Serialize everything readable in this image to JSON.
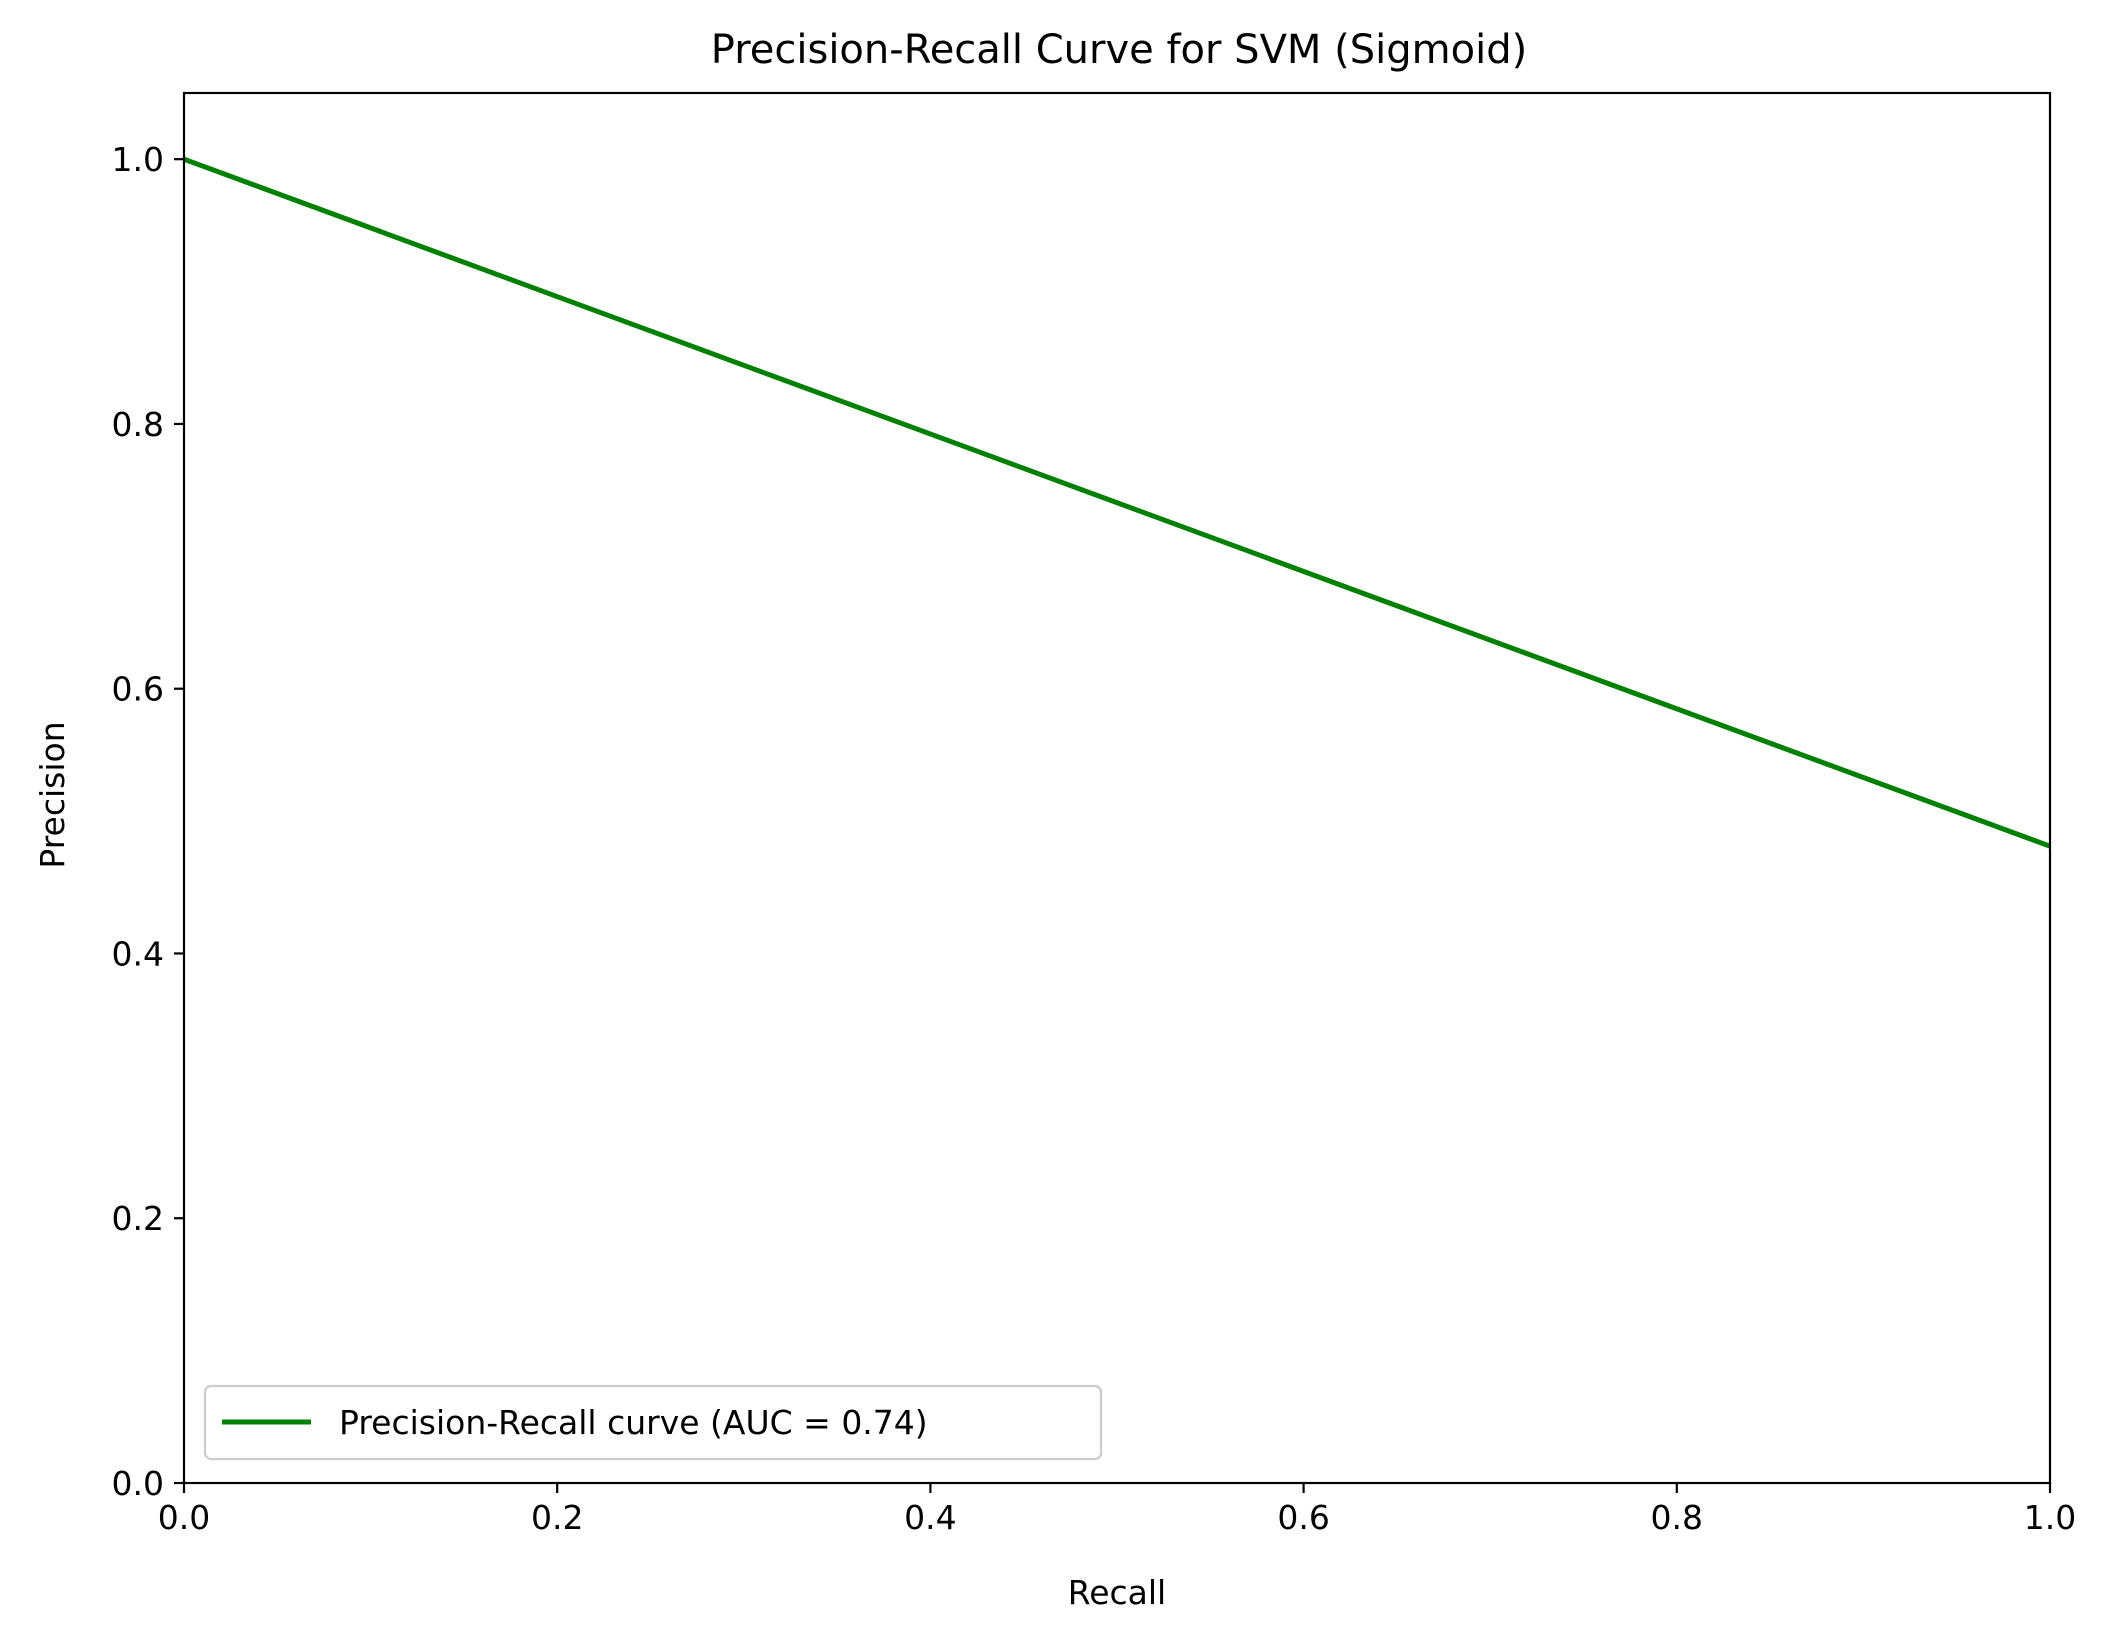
{
  "chart_data": {
    "type": "line",
    "title": "Precision-Recall Curve for SVM (Sigmoid)",
    "xlabel": "Recall",
    "ylabel": "Precision",
    "xlim": [
      0.0,
      1.0
    ],
    "ylim": [
      0.0,
      1.05
    ],
    "xticks": [
      "0.0",
      "0.2",
      "0.4",
      "0.6",
      "0.8",
      "1.0"
    ],
    "yticks": [
      "0.0",
      "0.2",
      "0.4",
      "0.6",
      "0.8",
      "1.0"
    ],
    "grid": false,
    "legend_position": "lower-left",
    "series": [
      {
        "name": "Precision-Recall curve (AUC = 0.74)",
        "color": "#008000",
        "x": [
          0.0,
          1.0
        ],
        "y": [
          1.0,
          0.481
        ]
      }
    ]
  }
}
